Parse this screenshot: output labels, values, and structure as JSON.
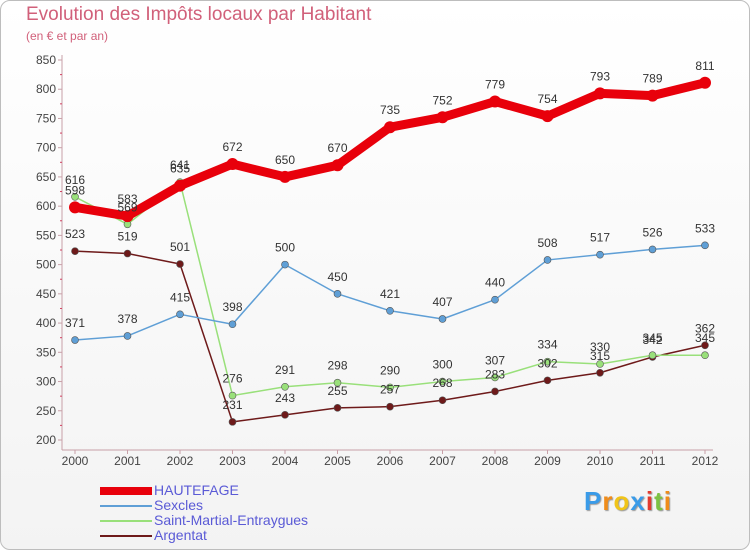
{
  "title": "Evolution des Impôts locaux par Habitant",
  "subtitle": "(en € et par an)",
  "logo": {
    "letters": [
      "P",
      "r",
      "o",
      "x",
      "i",
      "t",
      "i"
    ],
    "colors": [
      "#3a9be8",
      "#f08c1a",
      "#f0c419",
      "#3a9be8",
      "#e33a2e",
      "#7cc242",
      "#f08c1a"
    ]
  },
  "chart_data": {
    "type": "line",
    "title": "Evolution des Impôts locaux par Habitant",
    "subtitle": "(en € et par an)",
    "x": [
      "2000",
      "2001",
      "2002",
      "2003",
      "2004",
      "2005",
      "2006",
      "2007",
      "2008",
      "2009",
      "2010",
      "2011",
      "2012"
    ],
    "yticks": [
      "200",
      "250",
      "300",
      "350",
      "400",
      "450",
      "500",
      "550",
      "600",
      "650",
      "700",
      "750",
      "800",
      "850"
    ],
    "ylim": [
      200,
      850
    ],
    "grid": false,
    "legend_position": "bottom-left",
    "series": [
      {
        "name": "HAUTEFAGE",
        "color": "#e8000b",
        "values": [
          598,
          583,
          635,
          672,
          650,
          670,
          735,
          752,
          779,
          754,
          793,
          789,
          811
        ]
      },
      {
        "name": "Sexcles",
        "color": "#5f9fd6",
        "values": [
          371,
          378,
          415,
          398,
          500,
          450,
          421,
          407,
          440,
          508,
          517,
          526,
          533
        ]
      },
      {
        "name": "Saint-Martial-Entraygues",
        "color": "#99e07a",
        "values": [
          616,
          569,
          641,
          276,
          291,
          298,
          290,
          300,
          307,
          334,
          330,
          345,
          345
        ]
      },
      {
        "name": "Argentat",
        "color": "#6e1a1a",
        "values": [
          523,
          519,
          501,
          231,
          243,
          255,
          257,
          268,
          283,
          302,
          315,
          342,
          362
        ]
      }
    ]
  }
}
